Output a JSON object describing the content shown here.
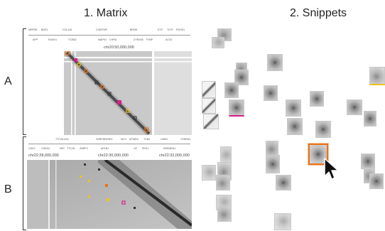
{
  "headings": {
    "matrix": "1. Matrix",
    "snippets": "2. Snippets"
  },
  "rows": {
    "a": "A",
    "b": "B"
  },
  "panel_a": {
    "genes_top": [
      "MRPS6",
      "BDE1",
      "COL1A1",
      "COMTMP",
      "BRND",
      "ETS",
      "TLR7",
      "PGHS1"
    ],
    "genes_bottom": [
      "APP",
      "RUNX1",
      "TCEB2",
      "MAPK1",
      "CHRD",
      "ZYRX06",
      "TYMP",
      "ACS2"
    ],
    "coordinate": "chr20:50,000,000",
    "accent": "#e8731c",
    "marker_pink": "#d61f8a",
    "marker_yellow": "#f2c21b"
  },
  "panel_b": {
    "genes_top": [
      "TTC28-AS1",
      "ZNRF3",
      "EWSR1",
      "MCC",
      "MTMR3",
      "TCN2",
      "LIMK2",
      "TXNRD2"
    ],
    "genes_bottom": [
      "CHK2",
      "CHEK2",
      "NF2",
      "TTC28",
      "ZNRF3",
      "AP1B1",
      "LIF",
      "PES1",
      "KREMEN1"
    ],
    "coord_left": "chr22:28,000,000",
    "coord_mid": "chr22:30,000,000",
    "coord_right": "chr22:32,000,000"
  },
  "cursor": {
    "icon": "arrow-cursor-icon"
  }
}
